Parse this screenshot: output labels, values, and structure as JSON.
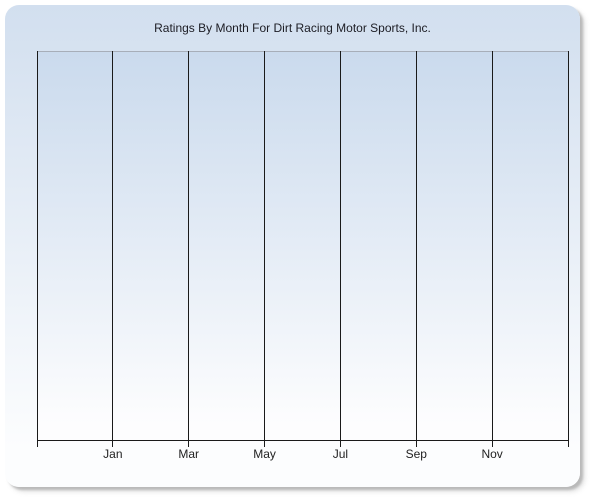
{
  "chart_data": {
    "type": "line",
    "title": "Ratings By Month For Dirt Racing Motor Sports, Inc.",
    "categories": [
      "Jan",
      "Mar",
      "May",
      "Jul",
      "Sep",
      "Nov"
    ],
    "series": [],
    "plot_area_empty": true,
    "x_gridline_count": 8,
    "x_tick_count": 8,
    "x_label_gridline_offset": 1,
    "gridlines": "vertical only",
    "y_axis_tick_labels": "none",
    "legend_position": "none",
    "colors": {
      "page_background": "#ffffff",
      "panel_gradient_top": "#d2dfef",
      "panel_gradient_bottom": "#fcfdfe",
      "plot_gradient_top": "#cadaed",
      "plot_gradient_bottom": "#fdfdfe",
      "plot_top_border": "#a7aeb9",
      "gridline": "#1a1a1a",
      "axis": "#1a1a1a",
      "title_text": "#1c1c24",
      "label_text": "#222222",
      "shadow": "#999999"
    }
  }
}
